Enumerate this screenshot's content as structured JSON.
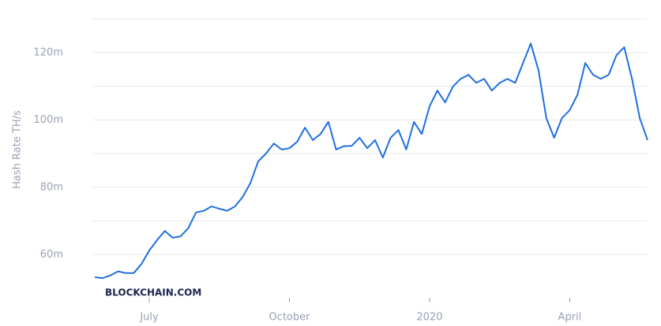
{
  "chart_data": {
    "type": "line",
    "y_axis_label": "Hash Rate TH/s",
    "watermark": "BLOCKCHAIN.COM",
    "categories": [
      null,
      null,
      null,
      null,
      null,
      null,
      null,
      "July",
      null,
      null,
      null,
      null,
      null,
      null,
      null,
      null,
      null,
      null,
      null,
      null,
      null,
      null,
      null,
      null,
      null,
      "October",
      null,
      null,
      null,
      null,
      null,
      null,
      null,
      null,
      null,
      null,
      null,
      null,
      null,
      null,
      null,
      null,
      null,
      "2020",
      null,
      null,
      null,
      null,
      null,
      null,
      null,
      null,
      null,
      null,
      null,
      null,
      null,
      null,
      null,
      null,
      null,
      "April",
      null,
      null,
      null,
      null,
      null,
      null,
      null,
      null,
      null,
      null
    ],
    "series": [
      {
        "color": "#1f6fe0",
        "values": [
          53300000,
          53000000,
          53800000,
          55000000,
          54500000,
          54500000,
          57200000,
          61200000,
          64300000,
          67000000,
          65000000,
          65400000,
          67800000,
          72500000,
          73000000,
          74300000,
          73600000,
          73000000,
          74300000,
          77100000,
          81300000,
          87700000,
          90000000,
          93000000,
          91200000,
          91600000,
          93500000,
          97700000,
          94000000,
          95800000,
          99400000,
          91200000,
          92200000,
          92300000,
          94700000,
          91600000,
          94000000,
          88800000,
          94700000,
          97000000,
          91200000,
          99400000,
          95800000,
          104000000,
          108700000,
          105200000,
          109900000,
          112200000,
          113400000,
          111000000,
          112200000,
          108700000,
          111000000,
          112200000,
          111000000,
          116900000,
          122700000,
          114600000,
          100500000,
          94700000,
          100500000,
          102900000,
          107500000,
          116900000,
          113400000,
          112200000,
          113400000,
          119200000,
          121600000,
          112200000,
          100500000,
          94000000
        ]
      }
    ],
    "ylim": [
      50000000,
      130000000
    ],
    "yticks": [
      {
        "value": 60000000,
        "label": "60m"
      },
      {
        "value": 80000000,
        "label": "80m"
      },
      {
        "value": 100000000,
        "label": "100m"
      },
      {
        "value": 120000000,
        "label": "120m"
      }
    ],
    "minor_grid": [
      70000000,
      90000000,
      110000000,
      130000000
    ],
    "grid": true
  }
}
